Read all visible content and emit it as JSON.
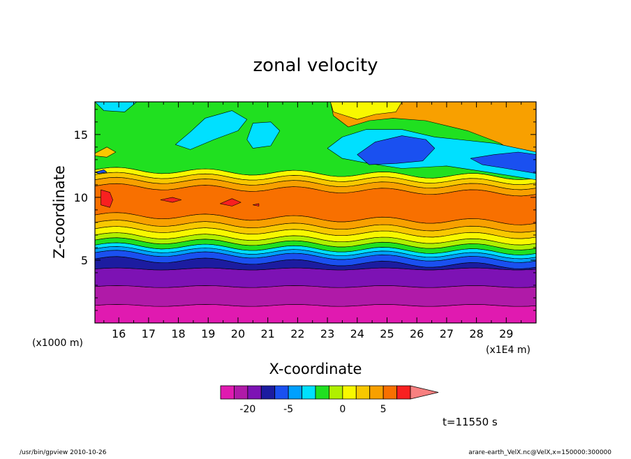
{
  "chart_data": {
    "type": "heatmap",
    "title": "zonal velocity",
    "xlabel": "X-coordinate",
    "ylabel": "Z-coordinate",
    "x_unit": "(x1E4 m)",
    "y_unit": "(x1000 m)",
    "xlim": [
      15.2,
      30.0
    ],
    "ylim": [
      0.0,
      17.6
    ],
    "x_ticks": [
      "16",
      "17",
      "18",
      "19",
      "20",
      "21",
      "22",
      "23",
      "24",
      "25",
      "26",
      "27",
      "28",
      "29"
    ],
    "y_ticks": [
      "5",
      "10",
      "15"
    ],
    "time_label": "t=11550 s",
    "colorbar": {
      "tick_labels": [
        {
          "value": -20,
          "label": "-20"
        },
        {
          "value": -5,
          "label": "-5"
        },
        {
          "value": 0,
          "label": "0"
        },
        {
          "value": 5,
          "label": "5"
        }
      ],
      "levels": [
        -30,
        -25,
        -20,
        -15,
        -10,
        -5,
        -3,
        -2,
        -1,
        0,
        1,
        2,
        5,
        10,
        15,
        20
      ],
      "colors": [
        "#e01ab0",
        "#b01aa8",
        "#7d12b4",
        "#1c1ca0",
        "#1a50f0",
        "#00a0ff",
        "#00e0ff",
        "#20e020",
        "#b0f000",
        "#f8f800",
        "#f8c800",
        "#f8a000",
        "#f87000",
        "#f82020",
        "#f88080"
      ]
    },
    "bands": [
      {
        "z": [
          0.0,
          1.4
        ],
        "color": "#e01ab0"
      },
      {
        "z": [
          1.4,
          2.9
        ],
        "color": "#b01aa8"
      },
      {
        "z": [
          2.9,
          4.3
        ],
        "color": "#7d12b4"
      },
      {
        "z": [
          4.3,
          5.1
        ],
        "color": "#1c1ca0"
      },
      {
        "z": [
          5.1,
          5.6
        ],
        "color": "#1a50f0"
      },
      {
        "z": [
          5.6,
          5.9
        ],
        "color": "#00a0ff"
      },
      {
        "z": [
          5.9,
          6.2
        ],
        "color": "#00e0ff"
      },
      {
        "z": [
          6.2,
          6.6
        ],
        "color": "#20e020"
      },
      {
        "z": [
          6.6,
          7.0
        ],
        "color": "#b0f000"
      },
      {
        "z": [
          7.0,
          7.5
        ],
        "color": "#f8f800"
      },
      {
        "z": [
          7.5,
          8.0
        ],
        "color": "#f8c800"
      },
      {
        "z": [
          8.0,
          8.6
        ],
        "color": "#f8a000"
      },
      {
        "z": [
          8.6,
          10.9
        ],
        "color": "#f87000"
      },
      {
        "z": [
          10.9,
          11.4
        ],
        "color": "#f8a000"
      },
      {
        "z": [
          11.4,
          11.8
        ],
        "color": "#f8c800"
      },
      {
        "z": [
          11.8,
          12.2
        ],
        "color": "#f8f800"
      },
      {
        "z": [
          12.2,
          17.6
        ],
        "color": "#20e020"
      }
    ],
    "blobs": [
      {
        "color": "#00e0ff",
        "pts": [
          [
            15.2,
            17.6
          ],
          [
            16.6,
            17.6
          ],
          [
            16.2,
            16.8
          ],
          [
            15.5,
            16.9
          ]
        ]
      },
      {
        "color": "#00e0ff",
        "pts": [
          [
            18.9,
            16.3
          ],
          [
            19.8,
            16.9
          ],
          [
            20.3,
            16.2
          ],
          [
            20.0,
            15.3
          ],
          [
            19.2,
            14.6
          ],
          [
            18.4,
            13.8
          ],
          [
            17.9,
            14.2
          ],
          [
            18.4,
            15.2
          ]
        ]
      },
      {
        "color": "#00e0ff",
        "pts": [
          [
            20.5,
            15.9
          ],
          [
            21.1,
            16.0
          ],
          [
            21.4,
            15.3
          ],
          [
            21.1,
            14.1
          ],
          [
            20.5,
            13.9
          ],
          [
            20.3,
            14.6
          ]
        ]
      },
      {
        "color": "#f8a000",
        "pts": [
          [
            23.1,
            17.6
          ],
          [
            30.0,
            17.6
          ],
          [
            30.0,
            13.1
          ],
          [
            29.4,
            13.4
          ],
          [
            28.8,
            14.3
          ],
          [
            27.7,
            15.3
          ],
          [
            26.3,
            16.1
          ],
          [
            25.2,
            16.3
          ],
          [
            24.4,
            16.1
          ],
          [
            23.7,
            15.6
          ],
          [
            23.2,
            16.5
          ]
        ]
      },
      {
        "color": "#f8f800",
        "pts": [
          [
            23.1,
            17.6
          ],
          [
            25.5,
            17.6
          ],
          [
            25.3,
            16.8
          ],
          [
            24.6,
            16.6
          ],
          [
            24.0,
            16.2
          ],
          [
            23.2,
            16.8
          ]
        ]
      },
      {
        "color": "#00e0ff",
        "pts": [
          [
            23.5,
            14.8
          ],
          [
            24.3,
            15.4
          ],
          [
            25.5,
            15.4
          ],
          [
            26.6,
            14.8
          ],
          [
            27.4,
            14.6
          ],
          [
            28.6,
            14.3
          ],
          [
            30.0,
            13.6
          ],
          [
            30.0,
            11.4
          ],
          [
            28.4,
            12.0
          ],
          [
            27.0,
            12.5
          ],
          [
            25.5,
            12.3
          ],
          [
            24.4,
            12.7
          ],
          [
            23.5,
            13.1
          ],
          [
            23.0,
            13.9
          ]
        ]
      },
      {
        "color": "#1a50f0",
        "pts": [
          [
            24.0,
            13.4
          ],
          [
            24.6,
            14.4
          ],
          [
            25.5,
            14.9
          ],
          [
            26.3,
            14.6
          ],
          [
            26.6,
            13.9
          ],
          [
            26.2,
            12.9
          ],
          [
            25.3,
            12.7
          ],
          [
            24.4,
            12.6
          ]
        ]
      },
      {
        "color": "#1a50f0",
        "pts": [
          [
            27.8,
            13.1
          ],
          [
            28.6,
            13.4
          ],
          [
            29.4,
            13.6
          ],
          [
            30.0,
            13.4
          ],
          [
            30.0,
            11.9
          ],
          [
            29.0,
            12.3
          ],
          [
            28.2,
            12.6
          ]
        ]
      },
      {
        "color": "#f82020",
        "pts": [
          [
            15.4,
            10.6
          ],
          [
            15.7,
            10.4
          ],
          [
            15.8,
            9.8
          ],
          [
            15.7,
            9.2
          ],
          [
            15.4,
            9.4
          ]
        ]
      },
      {
        "color": "#f82020",
        "pts": [
          [
            17.4,
            9.8
          ],
          [
            17.8,
            10.0
          ],
          [
            18.1,
            9.8
          ],
          [
            17.8,
            9.6
          ]
        ]
      },
      {
        "color": "#f82020",
        "pts": [
          [
            19.4,
            9.5
          ],
          [
            19.8,
            9.9
          ],
          [
            20.1,
            9.6
          ],
          [
            19.8,
            9.3
          ]
        ]
      },
      {
        "color": "#f82020",
        "pts": [
          [
            20.5,
            9.4
          ],
          [
            20.7,
            9.5
          ],
          [
            20.7,
            9.3
          ]
        ]
      },
      {
        "color": "#1a50f0",
        "pts": [
          [
            15.2,
            12.0
          ],
          [
            15.5,
            12.2
          ],
          [
            15.6,
            12.0
          ],
          [
            15.3,
            11.9
          ]
        ]
      },
      {
        "color": "#f8c800",
        "pts": [
          [
            15.2,
            13.5
          ],
          [
            15.6,
            14.0
          ],
          [
            15.9,
            13.6
          ],
          [
            15.6,
            13.2
          ],
          [
            15.2,
            13.3
          ]
        ]
      }
    ]
  },
  "footer": {
    "left": "/usr/bin/gpview   2010-10-26",
    "right": "arare-earth_VelX.nc@VelX,x=150000:300000"
  }
}
